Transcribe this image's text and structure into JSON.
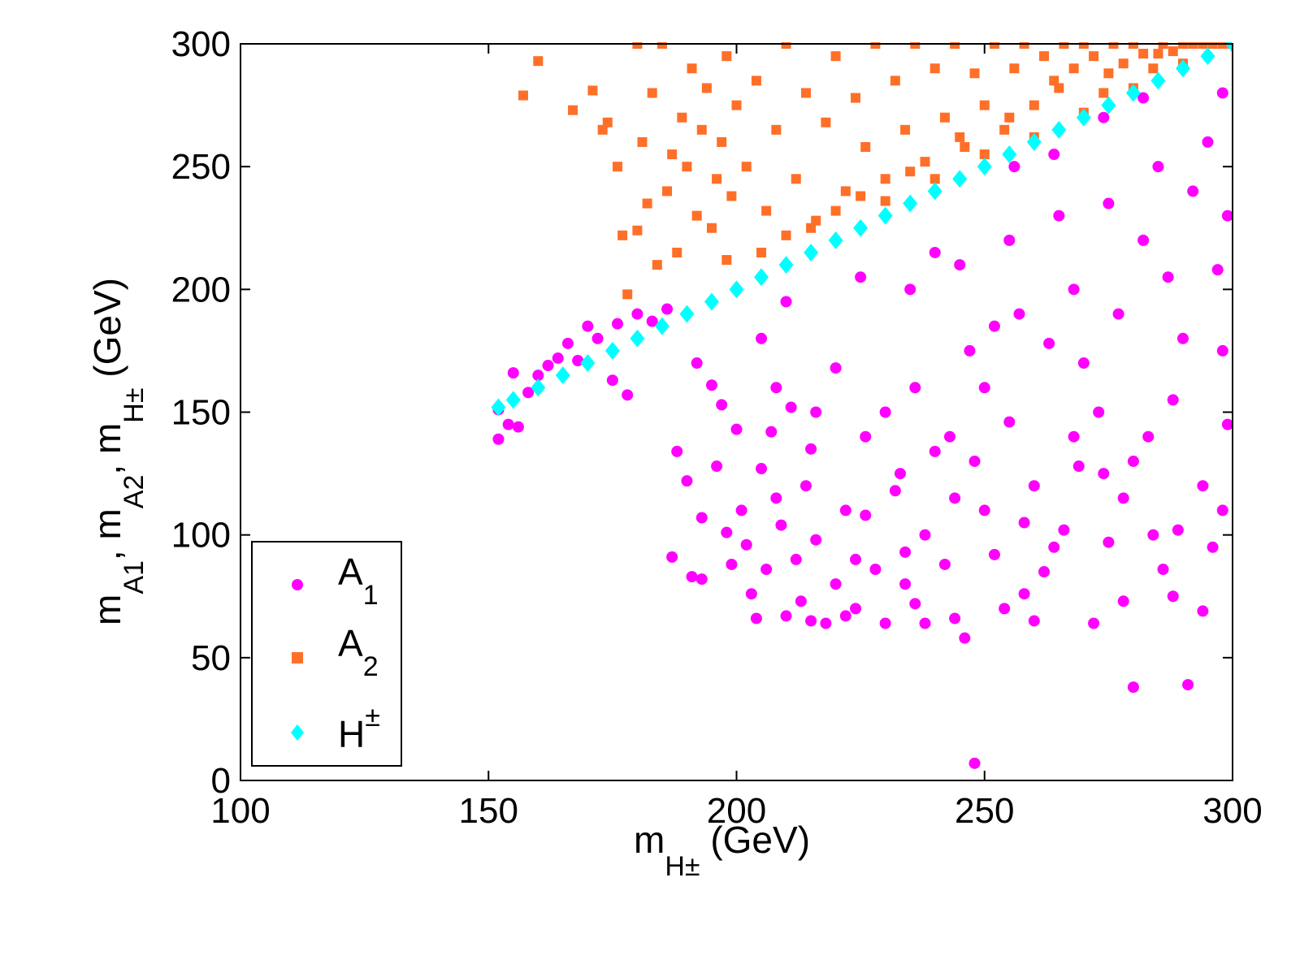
{
  "chart_data": {
    "type": "scatter",
    "xlim": [
      100,
      300
    ],
    "ylim": [
      0,
      300
    ],
    "x_ticks": [
      "100",
      "150",
      "200",
      "250",
      "300"
    ],
    "y_ticks": [
      "0",
      "50",
      "100",
      "150",
      "200",
      "250",
      "300"
    ],
    "xlabel": {
      "main": "m",
      "sub": "H±",
      "rest": " (GeV)"
    },
    "ylabel": {
      "m1": "m",
      "s1": "A1",
      "m2": ", m",
      "s2": "A2",
      "m3": ", m",
      "s3": "H±",
      "rest": " (GeV)"
    },
    "legend": {
      "position": "bottom-left",
      "entries": [
        {
          "main": "A",
          "sub": "1",
          "marker": "circle",
          "color": "#ff00ff"
        },
        {
          "main": "A",
          "sub": "2",
          "marker": "square",
          "color": "#ff6f28"
        },
        {
          "main": "H",
          "sup": "±",
          "marker": "diamond",
          "color": "#00ffff"
        }
      ]
    },
    "series": [
      {
        "name": "A1",
        "marker": "circle",
        "color": "#ff00ff",
        "points": [
          [
            152,
            139
          ],
          [
            152,
            151
          ],
          [
            154,
            145
          ],
          [
            155,
            166
          ],
          [
            156,
            144
          ],
          [
            158,
            158
          ],
          [
            160,
            165
          ],
          [
            162,
            169
          ],
          [
            164,
            172
          ],
          [
            166,
            178
          ],
          [
            168,
            171
          ],
          [
            170,
            185
          ],
          [
            172,
            180
          ],
          [
            175,
            163
          ],
          [
            176,
            186
          ],
          [
            178,
            157
          ],
          [
            180,
            190
          ],
          [
            183,
            187
          ],
          [
            186,
            192
          ],
          [
            187,
            91
          ],
          [
            188,
            134
          ],
          [
            190,
            122
          ],
          [
            191,
            83
          ],
          [
            192,
            170
          ],
          [
            193,
            82
          ],
          [
            193,
            107
          ],
          [
            195,
            161
          ],
          [
            196,
            128
          ],
          [
            197,
            153
          ],
          [
            198,
            101
          ],
          [
            199,
            88
          ],
          [
            200,
            143
          ],
          [
            201,
            110
          ],
          [
            202,
            96
          ],
          [
            203,
            76
          ],
          [
            204,
            66
          ],
          [
            205,
            127
          ],
          [
            206,
            86
          ],
          [
            207,
            142
          ],
          [
            208,
            115
          ],
          [
            209,
            104
          ],
          [
            210,
            67
          ],
          [
            211,
            152
          ],
          [
            212,
            90
          ],
          [
            213,
            73
          ],
          [
            214,
            120
          ],
          [
            215,
            65
          ],
          [
            216,
            98
          ],
          [
            218,
            64
          ],
          [
            220,
            80
          ],
          [
            222,
            67
          ],
          [
            224,
            70
          ],
          [
            226,
            108
          ],
          [
            228,
            86
          ],
          [
            230,
            64
          ],
          [
            232,
            118
          ],
          [
            234,
            93
          ],
          [
            236,
            72
          ],
          [
            238,
            64
          ],
          [
            240,
            134
          ],
          [
            242,
            88
          ],
          [
            244,
            66
          ],
          [
            246,
            58
          ],
          [
            248,
            7
          ],
          [
            250,
            110
          ],
          [
            252,
            92
          ],
          [
            255,
            146
          ],
          [
            258,
            76
          ],
          [
            260,
            65
          ],
          [
            263,
            178
          ],
          [
            266,
            102
          ],
          [
            269,
            128
          ],
          [
            272,
            64
          ],
          [
            275,
            97
          ],
          [
            278,
            73
          ],
          [
            280,
            38
          ],
          [
            283,
            140
          ],
          [
            286,
            86
          ],
          [
            289,
            102
          ],
          [
            291,
            39
          ],
          [
            294,
            69
          ],
          [
            297,
            208
          ],
          [
            299,
            145
          ],
          [
            205,
            180
          ],
          [
            220,
            168
          ],
          [
            235,
            200
          ],
          [
            245,
            210
          ],
          [
            255,
            220
          ],
          [
            265,
            230
          ],
          [
            275,
            235
          ],
          [
            285,
            250
          ],
          [
            295,
            260
          ],
          [
            210,
            195
          ],
          [
            225,
            205
          ],
          [
            240,
            215
          ],
          [
            252,
            185
          ],
          [
            268,
            200
          ],
          [
            282,
            220
          ],
          [
            292,
            240
          ],
          [
            298,
            280
          ],
          [
            230,
            150
          ],
          [
            250,
            160
          ],
          [
            270,
            170
          ],
          [
            290,
            180
          ],
          [
            260,
            120
          ],
          [
            280,
            130
          ],
          [
            298,
            110
          ],
          [
            238,
            100
          ],
          [
            262,
            85
          ],
          [
            288,
            75
          ],
          [
            296,
            95
          ],
          [
            243,
            140
          ],
          [
            273,
            150
          ],
          [
            215,
            135
          ],
          [
            222,
            110
          ],
          [
            233,
            125
          ],
          [
            247,
            175
          ],
          [
            257,
            190
          ],
          [
            277,
            190
          ],
          [
            287,
            205
          ],
          [
            299,
            230
          ],
          [
            208,
            160
          ],
          [
            216,
            150
          ],
          [
            226,
            140
          ],
          [
            236,
            160
          ],
          [
            248,
            130
          ],
          [
            258,
            105
          ],
          [
            268,
            140
          ],
          [
            278,
            115
          ],
          [
            288,
            155
          ],
          [
            298,
            175
          ],
          [
            224,
            90
          ],
          [
            234,
            80
          ],
          [
            244,
            115
          ],
          [
            254,
            70
          ],
          [
            264,
            95
          ],
          [
            274,
            125
          ],
          [
            284,
            100
          ],
          [
            294,
            120
          ],
          [
            256,
            250
          ],
          [
            274,
            270
          ],
          [
            290,
            290
          ],
          [
            282,
            278
          ],
          [
            264,
            255
          ]
        ]
      },
      {
        "name": "A2",
        "marker": "square",
        "color": "#ff6f28",
        "points": [
          [
            157,
            279
          ],
          [
            160,
            293
          ],
          [
            167,
            273
          ],
          [
            171,
            281
          ],
          [
            173,
            265
          ],
          [
            174,
            268
          ],
          [
            176,
            250
          ],
          [
            177,
            222
          ],
          [
            178,
            198
          ],
          [
            180,
            224
          ],
          [
            180,
            300
          ],
          [
            181,
            260
          ],
          [
            182,
            235
          ],
          [
            183,
            280
          ],
          [
            184,
            210
          ],
          [
            185,
            300
          ],
          [
            186,
            240
          ],
          [
            187,
            255
          ],
          [
            188,
            215
          ],
          [
            189,
            270
          ],
          [
            190,
            250
          ],
          [
            191,
            290
          ],
          [
            192,
            230
          ],
          [
            193,
            265
          ],
          [
            194,
            282
          ],
          [
            195,
            225
          ],
          [
            196,
            245
          ],
          [
            197,
            260
          ],
          [
            198,
            295
          ],
          [
            199,
            238
          ],
          [
            200,
            275
          ],
          [
            202,
            250
          ],
          [
            204,
            285
          ],
          [
            206,
            232
          ],
          [
            208,
            265
          ],
          [
            210,
            300
          ],
          [
            212,
            245
          ],
          [
            214,
            280
          ],
          [
            216,
            228
          ],
          [
            218,
            268
          ],
          [
            220,
            295
          ],
          [
            222,
            240
          ],
          [
            224,
            278
          ],
          [
            226,
            258
          ],
          [
            228,
            300
          ],
          [
            230,
            245
          ],
          [
            232,
            285
          ],
          [
            234,
            265
          ],
          [
            236,
            300
          ],
          [
            238,
            252
          ],
          [
            240,
            290
          ],
          [
            242,
            270
          ],
          [
            244,
            300
          ],
          [
            246,
            258
          ],
          [
            248,
            288
          ],
          [
            250,
            275
          ],
          [
            252,
            300
          ],
          [
            254,
            265
          ],
          [
            256,
            290
          ],
          [
            258,
            300
          ],
          [
            260,
            275
          ],
          [
            262,
            295
          ],
          [
            264,
            285
          ],
          [
            266,
            300
          ],
          [
            268,
            290
          ],
          [
            270,
            300
          ],
          [
            272,
            295
          ],
          [
            274,
            280
          ],
          [
            276,
            300
          ],
          [
            278,
            292
          ],
          [
            280,
            300
          ],
          [
            282,
            296
          ],
          [
            284,
            290
          ],
          [
            286,
            300
          ],
          [
            288,
            297
          ],
          [
            290,
            300
          ],
          [
            292,
            300
          ],
          [
            294,
            300
          ],
          [
            296,
            300
          ],
          [
            298,
            300
          ],
          [
            300,
            300
          ],
          [
            230,
            236
          ],
          [
            240,
            245
          ],
          [
            250,
            255
          ],
          [
            260,
            262
          ],
          [
            270,
            272
          ],
          [
            280,
            282
          ],
          [
            290,
            292
          ],
          [
            210,
            222
          ],
          [
            220,
            232
          ],
          [
            198,
            212
          ],
          [
            205,
            215
          ],
          [
            215,
            225
          ],
          [
            225,
            238
          ],
          [
            235,
            248
          ],
          [
            245,
            262
          ],
          [
            255,
            270
          ],
          [
            265,
            282
          ],
          [
            275,
            288
          ],
          [
            285,
            296
          ]
        ]
      },
      {
        "name": "H±",
        "marker": "diamond",
        "color": "#00ffff",
        "points": [
          [
            152,
            152
          ],
          [
            155,
            155
          ],
          [
            160,
            160
          ],
          [
            165,
            165
          ],
          [
            170,
            170
          ],
          [
            175,
            175
          ],
          [
            180,
            180
          ],
          [
            185,
            185
          ],
          [
            190,
            190
          ],
          [
            195,
            195
          ],
          [
            200,
            200
          ],
          [
            205,
            205
          ],
          [
            210,
            210
          ],
          [
            215,
            215
          ],
          [
            220,
            220
          ],
          [
            225,
            225
          ],
          [
            230,
            230
          ],
          [
            235,
            235
          ],
          [
            240,
            240
          ],
          [
            245,
            245
          ],
          [
            250,
            250
          ],
          [
            255,
            255
          ],
          [
            260,
            260
          ],
          [
            265,
            265
          ],
          [
            270,
            270
          ],
          [
            275,
            275
          ],
          [
            280,
            280
          ],
          [
            285,
            285
          ],
          [
            290,
            290
          ],
          [
            295,
            295
          ],
          [
            300,
            300
          ]
        ]
      }
    ]
  }
}
